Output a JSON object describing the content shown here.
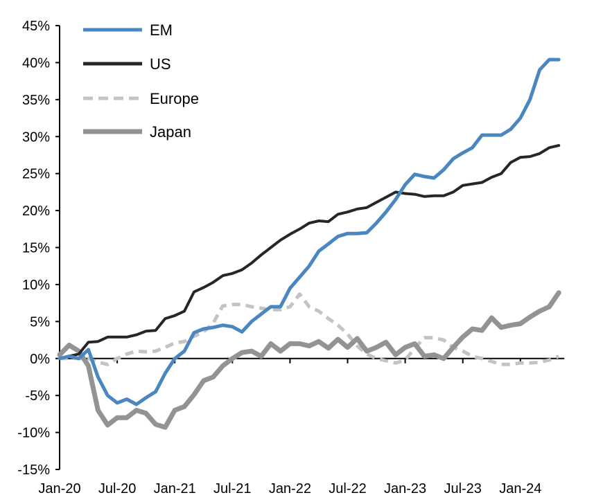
{
  "chart_data": {
    "type": "line",
    "title": "",
    "xlabel": "",
    "ylabel": "",
    "ylim": [
      -15,
      45
    ],
    "y_ticks": [
      "-15%",
      "-10%",
      "-5%",
      "0%",
      "5%",
      "10%",
      "15%",
      "20%",
      "25%",
      "30%",
      "35%",
      "40%",
      "45%"
    ],
    "y_tick_values": [
      -15,
      -10,
      -5,
      0,
      5,
      10,
      15,
      20,
      25,
      30,
      35,
      40,
      45
    ],
    "x_ticks": [
      "Jan-20",
      "Jul-20",
      "Jan-21",
      "Jul-21",
      "Jan-22",
      "Jul-22",
      "Jan-23",
      "Jul-23",
      "Jan-24"
    ],
    "x_tick_dates": [
      "2020-01",
      "2020-07",
      "2021-01",
      "2021-07",
      "2022-01",
      "2022-07",
      "2023-01",
      "2023-07",
      "2024-01"
    ],
    "grid": false,
    "legend_position": "top-left",
    "x": [
      "2020-01",
      "2020-02",
      "2020-03",
      "2020-04",
      "2020-05",
      "2020-06",
      "2020-07",
      "2020-08",
      "2020-09",
      "2020-10",
      "2020-11",
      "2020-12",
      "2021-01",
      "2021-02",
      "2021-03",
      "2021-04",
      "2021-05",
      "2021-06",
      "2021-07",
      "2021-08",
      "2021-09",
      "2021-10",
      "2021-11",
      "2021-12",
      "2022-01",
      "2022-02",
      "2022-03",
      "2022-04",
      "2022-05",
      "2022-06",
      "2022-07",
      "2022-08",
      "2022-09",
      "2022-10",
      "2022-11",
      "2022-12",
      "2023-01",
      "2023-02",
      "2023-03",
      "2023-04",
      "2023-05",
      "2023-06",
      "2023-07",
      "2023-08",
      "2023-09",
      "2023-10",
      "2023-11",
      "2023-12",
      "2024-01",
      "2024-02",
      "2024-03",
      "2024-04",
      "2024-05"
    ],
    "series": [
      {
        "name": "EM",
        "color": "#4a87c0",
        "style": "solid",
        "values": [
          0,
          0.3,
          0,
          1.2,
          -2.5,
          -5,
          -6,
          -5.5,
          -6.2,
          -5.3,
          -4.5,
          -2,
          0,
          1,
          3.5,
          4,
          4.2,
          4.5,
          4.3,
          3.6,
          5,
          6,
          7,
          7,
          9.5,
          11,
          12.5,
          14.5,
          15.5,
          16.5,
          16.9,
          16.9,
          17,
          18.3,
          19.8,
          21.5,
          23.5,
          24.9,
          24.6,
          24.4,
          25.5,
          27,
          27.8,
          28.5,
          30.2,
          30.2,
          30.2,
          31,
          32.5,
          35,
          39,
          40.4,
          40.4
        ]
      },
      {
        "name": "US",
        "color": "#262626",
        "style": "solid",
        "values": [
          0,
          0.3,
          0.6,
          2.2,
          2.3,
          2.9,
          2.9,
          2.9,
          3.2,
          3.7,
          3.8,
          5.4,
          5.8,
          6.4,
          9,
          9.6,
          10.3,
          11.2,
          11.5,
          12,
          12.9,
          14,
          15,
          16,
          16.8,
          17.5,
          18.3,
          18.6,
          18.5,
          19.5,
          19.8,
          20.2,
          20.4,
          21.1,
          21.8,
          22.5,
          22.3,
          22.2,
          21.9,
          22,
          22,
          22.5,
          23.4,
          23.6,
          23.8,
          24.5,
          25,
          26.5,
          27.2,
          27.3,
          27.7,
          28.5,
          28.8
        ]
      },
      {
        "name": "Europe",
        "color": "#c3c3c3",
        "style": "dashed",
        "values": [
          0,
          0,
          0,
          0,
          -0.5,
          -0.8,
          0,
          0.6,
          1,
          0.9,
          1,
          1.5,
          2.1,
          2.3,
          3,
          3.6,
          4.8,
          7.1,
          7.3,
          7.3,
          7,
          6.8,
          6.6,
          6.6,
          7,
          8.7,
          7,
          6.4,
          5.4,
          4.5,
          3.3,
          1.7,
          0.6,
          0,
          -0.3,
          -0.6,
          -0.2,
          1.4,
          2.8,
          2.8,
          2.5,
          1.5,
          1,
          0.3,
          0,
          -0.4,
          -0.8,
          -0.8,
          -0.6,
          -0.6,
          -0.5,
          -0.2,
          0.3
        ]
      },
      {
        "name": "Japan",
        "color": "#939393",
        "style": "solid",
        "values": [
          0.5,
          1.8,
          1,
          -1,
          -7,
          -9,
          -8,
          -8,
          -7,
          -7.4,
          -8.9,
          -9.3,
          -7,
          -6.5,
          -4.9,
          -3,
          -2.5,
          -1,
          0,
          0.8,
          1,
          0.3,
          2,
          1,
          2,
          2,
          1.7,
          2.3,
          1.4,
          2.6,
          1.5,
          2.7,
          1,
          1.5,
          2.2,
          0.5,
          1.5,
          2,
          0.3,
          0.5,
          0,
          1.5,
          2.9,
          4,
          3.8,
          5.5,
          4.2,
          4.5,
          4.7,
          5.6,
          6.4,
          7,
          8.9
        ]
      }
    ]
  }
}
